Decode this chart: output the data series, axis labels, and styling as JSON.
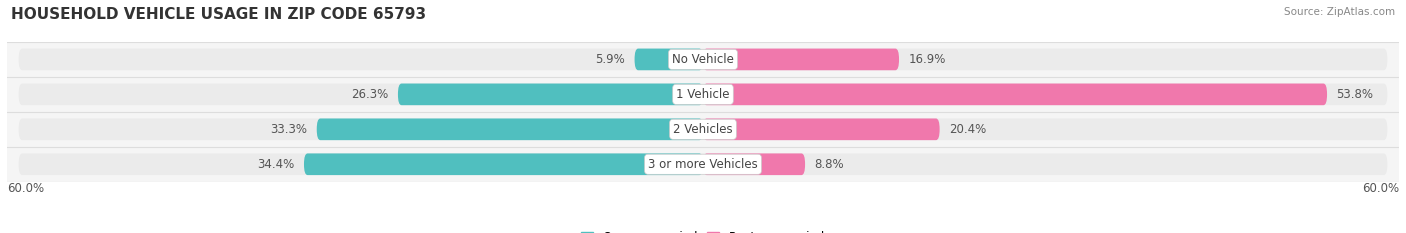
{
  "title": "HOUSEHOLD VEHICLE USAGE IN ZIP CODE 65793",
  "source": "Source: ZipAtlas.com",
  "categories": [
    "No Vehicle",
    "1 Vehicle",
    "2 Vehicles",
    "3 or more Vehicles"
  ],
  "owner_values": [
    5.9,
    26.3,
    33.3,
    34.4
  ],
  "renter_values": [
    16.9,
    53.8,
    20.4,
    8.8
  ],
  "owner_color": "#50BFBF",
  "renter_color": "#F078AC",
  "axis_max": 60.0,
  "background_color": "#ffffff",
  "bar_bg_color": "#ebebeb",
  "row_bg_color": "#f5f5f5",
  "bar_height": 0.62,
  "row_sep_color": "#dddddd",
  "title_fontsize": 11,
  "label_fontsize": 8.5,
  "tick_fontsize": 8.5,
  "category_fontsize": 8.5,
  "x_left_label": "60.0%",
  "x_right_label": "60.0%"
}
